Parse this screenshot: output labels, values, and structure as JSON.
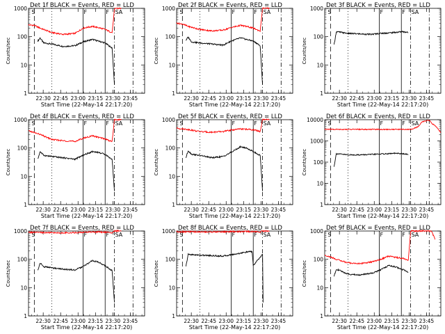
{
  "x_axis": {
    "label": "Start Time (22-May-14 22:17:20)",
    "tick_labels": [
      "22:30",
      "22:45",
      "23:00",
      "23:15",
      "23:30",
      "23:45"
    ],
    "tick_minutes": [
      12.667,
      27.667,
      42.667,
      57.667,
      72.667,
      87.667
    ],
    "range_minutes": [
      0,
      100
    ]
  },
  "y_axis": {
    "label": "Counts/sec",
    "scale": "log",
    "range": [
      1,
      1000
    ],
    "tick_labels": [
      "1",
      "10",
      "100",
      "1000"
    ],
    "tick_values": [
      1,
      10,
      100,
      1000
    ]
  },
  "markers": {
    "labels": [
      "S",
      "F",
      "F",
      "SA"
    ],
    "vertical_lines": [
      {
        "minute": 5,
        "style": "dashed"
      },
      {
        "minute": 20,
        "style": "dotted"
      },
      {
        "minute": 47,
        "style": "solid"
      },
      {
        "minute": 66,
        "style": "solid"
      },
      {
        "minute": 74,
        "style": "dashdot"
      },
      {
        "minute": 90,
        "style": "dashdot"
      }
    ]
  },
  "colors": {
    "events": "#000000",
    "lld": "#ff0000"
  },
  "chart_data": [
    {
      "type": "line",
      "title": "Det 1f BLACK = Events, RED = LLD",
      "ylim": [
        1,
        1000
      ],
      "series": [
        {
          "color": "black",
          "x": [
            8,
            10,
            13,
            20,
            30,
            40,
            47,
            55,
            60,
            66,
            70,
            72,
            74
          ],
          "y": [
            70,
            90,
            60,
            55,
            45,
            48,
            65,
            80,
            70,
            60,
            45,
            40,
            2
          ]
        },
        {
          "color": "red",
          "x": [
            0,
            5,
            10,
            20,
            30,
            40,
            47,
            55,
            60,
            66,
            70,
            72,
            74,
            75,
            80
          ],
          "y": [
            260,
            250,
            200,
            140,
            120,
            130,
            200,
            230,
            210,
            180,
            150,
            140,
            900,
            1000,
            1000
          ]
        }
      ]
    },
    {
      "type": "line",
      "title": "Det 2f BLACK = Events, RED = LLD",
      "ylim": [
        1,
        1000
      ],
      "series": [
        {
          "color": "black",
          "x": [
            8,
            10,
            13,
            20,
            30,
            40,
            47,
            55,
            60,
            66,
            70,
            72,
            74
          ],
          "y": [
            75,
            95,
            65,
            60,
            55,
            50,
            70,
            90,
            80,
            70,
            55,
            45,
            2
          ]
        },
        {
          "color": "red",
          "x": [
            0,
            5,
            10,
            20,
            30,
            40,
            47,
            55,
            60,
            66,
            70,
            72,
            74,
            75,
            80
          ],
          "y": [
            300,
            280,
            230,
            180,
            160,
            170,
            210,
            250,
            230,
            200,
            170,
            160,
            1000,
            1000,
            1000
          ]
        }
      ]
    },
    {
      "type": "line",
      "title": "Det 3f BLACK = Events, RED = LLD",
      "ylim": [
        1,
        1000
      ],
      "series": [
        {
          "color": "black",
          "x": [
            8,
            10,
            20,
            30,
            40,
            47,
            55,
            60,
            66,
            70,
            72
          ],
          "y": [
            50,
            150,
            130,
            125,
            120,
            130,
            135,
            140,
            150,
            145,
            140
          ]
        }
      ]
    },
    {
      "type": "line",
      "title": "Det 4f BLACK = Events, RED = LLD",
      "ylim": [
        1,
        1000
      ],
      "series": [
        {
          "color": "black",
          "x": [
            8,
            10,
            13,
            20,
            30,
            40,
            47,
            55,
            60,
            66,
            70,
            72,
            74
          ],
          "y": [
            40,
            75,
            55,
            50,
            45,
            40,
            55,
            75,
            70,
            60,
            45,
            40,
            3
          ]
        },
        {
          "color": "red",
          "x": [
            0,
            5,
            10,
            20,
            30,
            40,
            47,
            55,
            60,
            66,
            70,
            72,
            74,
            75,
            80
          ],
          "y": [
            400,
            350,
            300,
            200,
            180,
            170,
            220,
            270,
            240,
            210,
            180,
            170,
            1000,
            1000,
            1000
          ]
        }
      ]
    },
    {
      "type": "line",
      "title": "Det 5f BLACK = Events, RED = LLD",
      "ylim": [
        1,
        1000
      ],
      "series": [
        {
          "color": "black",
          "x": [
            8,
            10,
            13,
            20,
            30,
            40,
            47,
            55,
            60,
            66,
            70,
            72,
            74
          ],
          "y": [
            45,
            80,
            60,
            55,
            45,
            50,
            70,
            110,
            100,
            75,
            60,
            55,
            3
          ]
        },
        {
          "color": "red",
          "x": [
            0,
            10,
            20,
            30,
            40,
            47,
            55,
            60,
            66,
            70,
            72,
            74,
            75,
            80
          ],
          "y": [
            500,
            450,
            380,
            360,
            380,
            430,
            470,
            460,
            440,
            400,
            380,
            1000,
            1000,
            1000
          ]
        }
      ]
    },
    {
      "type": "line",
      "title": "Det 6f BLACK = Events, RED = LLD",
      "ylim": [
        1,
        10000
      ],
      "series": [
        {
          "color": "black",
          "x": [
            8,
            10,
            20,
            30,
            40,
            47,
            55,
            60,
            66,
            70,
            72
          ],
          "y": [
            60,
            250,
            220,
            220,
            230,
            240,
            250,
            260,
            250,
            240,
            230
          ]
        },
        {
          "color": "red",
          "x": [
            0,
            72,
            74,
            80,
            84,
            90,
            92,
            96,
            100
          ],
          "y": [
            3500,
            3500,
            3500,
            4500,
            8000,
            9500,
            7000,
            4500,
            2500
          ]
        }
      ]
    },
    {
      "type": "line",
      "title": "Det 7f BLACK = Events, RED = LLD",
      "ylim": [
        1,
        1000
      ],
      "series": [
        {
          "color": "black",
          "x": [
            8,
            10,
            13,
            20,
            30,
            40,
            47,
            55,
            60,
            66,
            70,
            72,
            74
          ],
          "y": [
            40,
            75,
            55,
            50,
            45,
            42,
            55,
            90,
            80,
            60,
            45,
            40,
            3
          ]
        },
        {
          "color": "red",
          "x": [
            0,
            10,
            20,
            30,
            40,
            47,
            55,
            60,
            66,
            70,
            72,
            74,
            80
          ],
          "y": [
            900,
            880,
            870,
            860,
            880,
            900,
            920,
            920,
            910,
            900,
            880,
            1000,
            1000
          ]
        }
      ]
    },
    {
      "type": "line",
      "title": "Det 8f BLACK = Events, RED = LLD",
      "ylim": [
        1,
        1000
      ],
      "series": [
        {
          "color": "black",
          "x": [
            8,
            10,
            20,
            30,
            40,
            47,
            55,
            60,
            65,
            66,
            74,
            74.5
          ],
          "y": [
            55,
            150,
            140,
            135,
            130,
            145,
            165,
            180,
            190,
            60,
            150,
            3
          ]
        },
        {
          "color": "red",
          "x": [
            0,
            10,
            20,
            30,
            40,
            47,
            55,
            60,
            66,
            70,
            72,
            74,
            80
          ],
          "y": [
            950,
            940,
            930,
            930,
            940,
            950,
            960,
            960,
            950,
            940,
            930,
            1000,
            1000
          ]
        }
      ]
    },
    {
      "type": "line",
      "title": "Det 9f BLACK = Events, RED = LLD",
      "ylim": [
        1,
        1000
      ],
      "series": [
        {
          "color": "black",
          "x": [
            8,
            10,
            13,
            20,
            30,
            40,
            47,
            55,
            60,
            66,
            70,
            72
          ],
          "y": [
            25,
            45,
            40,
            30,
            28,
            32,
            40,
            60,
            55,
            45,
            40,
            35
          ]
        },
        {
          "color": "red",
          "x": [
            0,
            5,
            10,
            20,
            30,
            40,
            47,
            55,
            60,
            66,
            70,
            72,
            74,
            75,
            80,
            88,
            92,
            95
          ],
          "y": [
            140,
            120,
            100,
            75,
            70,
            80,
            95,
            130,
            120,
            110,
            100,
            95,
            1000,
            1000,
            1000,
            1000,
            1000,
            500
          ]
        }
      ]
    }
  ]
}
